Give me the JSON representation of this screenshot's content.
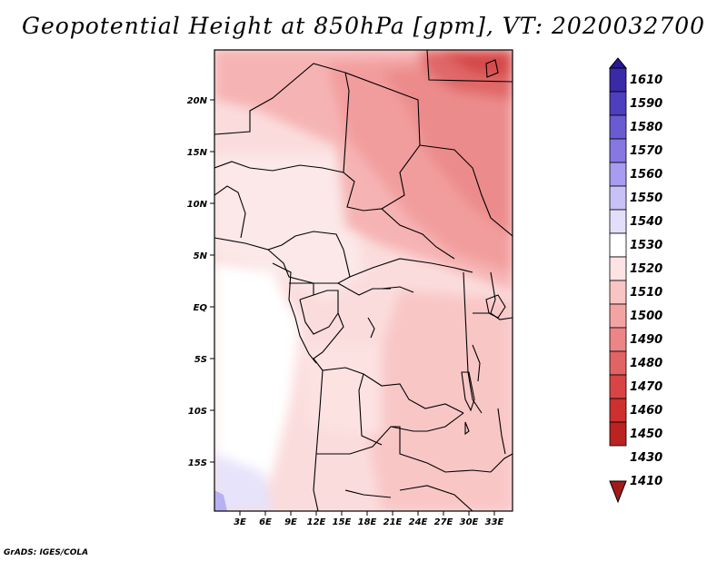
{
  "title": "Geopotential Height at 850hPa [gpm], VT: 2020032700",
  "credit": "GrADS: IGES/COLA",
  "map": {
    "lon_ticks": [
      "3E",
      "6E",
      "9E",
      "12E",
      "15E",
      "18E",
      "21E",
      "24E",
      "27E",
      "30E",
      "33E"
    ],
    "lat_ticks": [
      "20N",
      "15N",
      "10N",
      "5N",
      "EQ",
      "5S",
      "10S",
      "15S"
    ],
    "region": "Central Africa"
  },
  "colorbar": {
    "labels": [
      "1610",
      "1590",
      "1580",
      "1570",
      "1560",
      "1550",
      "1540",
      "1530",
      "1520",
      "1510",
      "1500",
      "1490",
      "1480",
      "1470",
      "1460",
      "1450",
      "1430",
      "1410"
    ],
    "colors": [
      "#2a1896",
      "#3a2aa8",
      "#4d3fbd",
      "#6a5bd3",
      "#8677e3",
      "#a79cf0",
      "#c8c1f7",
      "#e3dffb",
      "#ffffff",
      "#fde3e3",
      "#f9c4c4",
      "#f4a3a3",
      "#ec8585",
      "#e26363",
      "#d94545",
      "#ce3030",
      "#bb2222",
      "#a01a1a"
    ]
  }
}
